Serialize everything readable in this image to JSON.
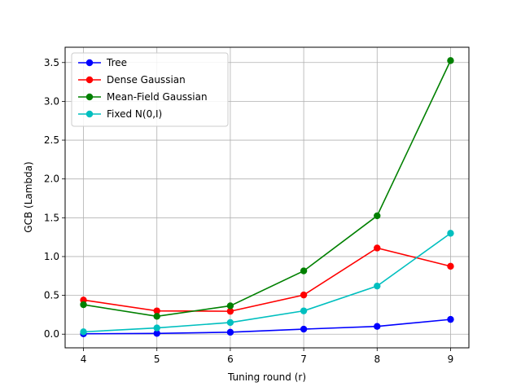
{
  "chart_data": {
    "type": "line",
    "title": "",
    "xlabel": "Tuning round (r)",
    "ylabel": "GCB (Lambda)",
    "x": [
      4,
      5,
      6,
      7,
      8,
      9
    ],
    "xlim": [
      3.75,
      9.25
    ],
    "ylim": [
      -0.176,
      3.697
    ],
    "xticks": [
      4,
      5,
      6,
      7,
      8,
      9
    ],
    "yticks": [
      0.0,
      0.5,
      1.0,
      1.5,
      2.0,
      2.5,
      3.0,
      3.5
    ],
    "ytick_labels": [
      "0.0",
      "0.5",
      "1.0",
      "1.5",
      "2.0",
      "2.5",
      "3.0",
      "3.5"
    ],
    "grid": true,
    "legend_position": "upper-left",
    "series": [
      {
        "name": "Tree",
        "color": "#0000ff",
        "values": [
          0.005,
          0.01,
          0.025,
          0.065,
          0.1,
          0.19
        ]
      },
      {
        "name": "Dense Gaussian",
        "color": "#ff0000",
        "values": [
          0.44,
          0.3,
          0.295,
          0.505,
          1.11,
          0.875
        ]
      },
      {
        "name": "Mean-Field Gaussian",
        "color": "#008000",
        "values": [
          0.38,
          0.23,
          0.365,
          0.815,
          1.525,
          3.525
        ]
      },
      {
        "name": "Fixed N(0,I)",
        "color": "#00bfbf",
        "values": [
          0.03,
          0.08,
          0.15,
          0.3,
          0.62,
          1.3
        ]
      }
    ]
  }
}
